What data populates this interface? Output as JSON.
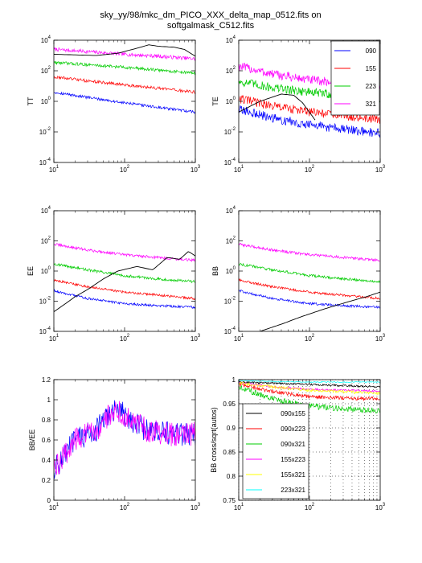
{
  "figure": {
    "title_line1": "sky_yy/98/mkc_dm_PICO_XXX_delta_map_0512.fits on",
    "title_line2": "softgalmask_C512.fits"
  },
  "colors": {
    "090": "#0000ff",
    "155": "#ff0000",
    "223": "#00cc00",
    "321": "#ff00ff",
    "theory": "#000000",
    "090x155": "#000000",
    "090x223": "#ff0000",
    "090x321": "#00cc00",
    "155x223": "#ff00ff",
    "155x321": "#ffff00",
    "223x321": "#00ffff"
  },
  "chart_data": [
    {
      "id": "TT",
      "type": "line",
      "ylabel": "TT",
      "xscale": "log",
      "yscale": "log",
      "xlim": [
        10,
        1000
      ],
      "ylim": [
        0.0001,
        10000
      ],
      "xticks": [
        {
          "base": "10",
          "exp": "1"
        },
        {
          "base": "10",
          "exp": "2"
        },
        {
          "base": "10",
          "exp": "3"
        }
      ],
      "yticks": [
        {
          "base": "10",
          "exp": "-4"
        },
        {
          "base": "10",
          "exp": "-2"
        },
        {
          "base": "10",
          "exp": "0"
        },
        {
          "base": "10",
          "exp": "2"
        },
        {
          "base": "10",
          "exp": "4"
        }
      ],
      "series": [
        {
          "key": "321",
          "x": [
            10,
            30,
            100,
            300,
            1000
          ],
          "y": [
            2500,
            1800,
            1200,
            900,
            600
          ],
          "noise": 0.12
        },
        {
          "key": "223",
          "x": [
            10,
            30,
            100,
            300,
            1000
          ],
          "y": [
            350,
            250,
            170,
            110,
            70
          ],
          "noise": 0.1
        },
        {
          "key": "155",
          "x": [
            10,
            30,
            100,
            300,
            1000
          ],
          "y": [
            40,
            22,
            12,
            7,
            4
          ],
          "noise": 0.1
        },
        {
          "key": "090",
          "x": [
            10,
            30,
            100,
            300,
            1000
          ],
          "y": [
            4,
            1.8,
            0.8,
            0.4,
            0.2
          ],
          "noise": 0.09
        },
        {
          "key": "theory",
          "x": [
            10,
            20,
            40,
            80,
            150,
            220,
            300,
            500,
            700,
            1000
          ],
          "y": [
            1200,
            1100,
            1000,
            1400,
            3000,
            5000,
            4000,
            3500,
            2500,
            900
          ],
          "noise": 0
        }
      ]
    },
    {
      "id": "TE",
      "type": "line",
      "ylabel": "TE",
      "xscale": "log",
      "yscale": "log",
      "xlim": [
        10,
        1000
      ],
      "ylim": [
        0.0001,
        10000
      ],
      "xticks": [
        {
          "base": "10",
          "exp": "1"
        },
        {
          "base": "10",
          "exp": "2"
        },
        {
          "base": "10",
          "exp": "3"
        }
      ],
      "yticks": [
        {
          "base": "10",
          "exp": "-4"
        },
        {
          "base": "10",
          "exp": "-2"
        },
        {
          "base": "10",
          "exp": "0"
        },
        {
          "base": "10",
          "exp": "2"
        },
        {
          "base": "10",
          "exp": "4"
        }
      ],
      "legend": {
        "position": "top-right",
        "entries": [
          "090",
          "155",
          "223",
          "321"
        ]
      },
      "series": [
        {
          "key": "321",
          "x": [
            10,
            30,
            100,
            300,
            1000
          ],
          "y": [
            200,
            60,
            25,
            15,
            10
          ],
          "noise": 0.3
        },
        {
          "key": "223",
          "x": [
            10,
            30,
            100,
            300,
            1000
          ],
          "y": [
            20,
            8,
            4,
            2.5,
            1.5
          ],
          "noise": 0.3
        },
        {
          "key": "155",
          "x": [
            10,
            30,
            100,
            300,
            1000
          ],
          "y": [
            1.5,
            0.5,
            0.2,
            0.12,
            0.06
          ],
          "noise": 0.3
        },
        {
          "key": "090",
          "x": [
            10,
            30,
            100,
            300,
            1000
          ],
          "y": [
            0.3,
            0.08,
            0.03,
            0.015,
            0.008
          ],
          "noise": 0.3
        },
        {
          "key": "theory",
          "x": [
            10,
            20,
            40,
            60,
            80,
            120
          ],
          "y": [
            0.2,
            1,
            3,
            2.5,
            0.8,
            0.06
          ],
          "noise": 0
        }
      ]
    },
    {
      "id": "EE",
      "type": "line",
      "ylabel": "EE",
      "xscale": "log",
      "yscale": "log",
      "xlim": [
        10,
        1000
      ],
      "ylim": [
        0.0001,
        10000
      ],
      "xticks": [
        {
          "base": "10",
          "exp": "1"
        },
        {
          "base": "10",
          "exp": "2"
        },
        {
          "base": "10",
          "exp": "3"
        }
      ],
      "yticks": [
        {
          "base": "10",
          "exp": "-4"
        },
        {
          "base": "10",
          "exp": "-2"
        },
        {
          "base": "10",
          "exp": "0"
        },
        {
          "base": "10",
          "exp": "2"
        },
        {
          "base": "10",
          "exp": "4"
        }
      ],
      "series": [
        {
          "key": "321",
          "x": [
            10,
            30,
            100,
            300,
            1000
          ],
          "y": [
            60,
            25,
            12,
            8,
            5
          ],
          "noise": 0.09
        },
        {
          "key": "223",
          "x": [
            10,
            30,
            100,
            300,
            1000
          ],
          "y": [
            3,
            1.2,
            0.5,
            0.3,
            0.2
          ],
          "noise": 0.09
        },
        {
          "key": "155",
          "x": [
            10,
            30,
            100,
            300,
            1000
          ],
          "y": [
            0.25,
            0.09,
            0.04,
            0.025,
            0.015
          ],
          "noise": 0.08
        },
        {
          "key": "090",
          "x": [
            10,
            30,
            100,
            300,
            1000
          ],
          "y": [
            0.05,
            0.015,
            0.007,
            0.005,
            0.004
          ],
          "noise": 0.08
        },
        {
          "key": "theory",
          "x": [
            10,
            14,
            20,
            30,
            50,
            80,
            150,
            250,
            400,
            600,
            800,
            1000
          ],
          "y": [
            0.002,
            0.006,
            0.02,
            0.06,
            0.3,
            1,
            2,
            1.2,
            8,
            6,
            20,
            10
          ],
          "noise": 0
        }
      ]
    },
    {
      "id": "BB",
      "type": "line",
      "ylabel": "BB",
      "xscale": "log",
      "yscale": "log",
      "xlim": [
        10,
        1000
      ],
      "ylim": [
        0.0001,
        10000
      ],
      "xticks": [
        {
          "base": "10",
          "exp": "1"
        },
        {
          "base": "10",
          "exp": "2"
        },
        {
          "base": "10",
          "exp": "3"
        }
      ],
      "yticks": [
        {
          "base": "10",
          "exp": "-4"
        },
        {
          "base": "10",
          "exp": "-2"
        },
        {
          "base": "10",
          "exp": "0"
        },
        {
          "base": "10",
          "exp": "2"
        },
        {
          "base": "10",
          "exp": "4"
        }
      ],
      "series": [
        {
          "key": "321",
          "x": [
            10,
            30,
            100,
            300,
            1000
          ],
          "y": [
            60,
            25,
            12,
            8,
            5
          ],
          "noise": 0.09
        },
        {
          "key": "223",
          "x": [
            10,
            30,
            100,
            300,
            1000
          ],
          "y": [
            3,
            1.2,
            0.5,
            0.3,
            0.2
          ],
          "noise": 0.09
        },
        {
          "key": "155",
          "x": [
            10,
            30,
            100,
            300,
            1000
          ],
          "y": [
            0.25,
            0.09,
            0.04,
            0.025,
            0.015
          ],
          "noise": 0.08
        },
        {
          "key": "090",
          "x": [
            10,
            30,
            100,
            300,
            1000
          ],
          "y": [
            0.05,
            0.015,
            0.007,
            0.005,
            0.004
          ],
          "noise": 0.08
        },
        {
          "key": "theory",
          "x": [
            20,
            40,
            80,
            160,
            320,
            640,
            1000
          ],
          "y": [
            0.0001,
            0.0003,
            0.001,
            0.003,
            0.008,
            0.02,
            0.04
          ],
          "noise": 0
        }
      ]
    },
    {
      "id": "ratio",
      "type": "line",
      "ylabel": "BB/EE",
      "xscale": "log",
      "yscale": "linear",
      "xlim": [
        10,
        1000
      ],
      "ylim": [
        0,
        1.2
      ],
      "xticks": [
        {
          "base": "10",
          "exp": "1"
        },
        {
          "base": "10",
          "exp": "2"
        },
        {
          "base": "10",
          "exp": "3"
        }
      ],
      "yticks": [
        {
          "text": "0"
        },
        {
          "text": "0.2"
        },
        {
          "text": "0.4"
        },
        {
          "text": "0.6"
        },
        {
          "text": "0.8"
        },
        {
          "text": "1"
        },
        {
          "text": "1.2"
        }
      ],
      "series": [
        {
          "key": "090",
          "x": [
            10,
            20,
            40,
            70,
            100,
            200,
            500,
            1000
          ],
          "y": [
            0.3,
            0.6,
            0.7,
            0.9,
            0.85,
            0.7,
            0.65,
            0.66
          ],
          "noise": 0.12
        },
        {
          "key": "321",
          "x": [
            10,
            20,
            40,
            70,
            100,
            200,
            500,
            1000
          ],
          "y": [
            0.3,
            0.6,
            0.7,
            0.9,
            0.85,
            0.7,
            0.65,
            0.66
          ],
          "noise": 0.12
        }
      ]
    },
    {
      "id": "cross",
      "type": "line",
      "ylabel": "BB cross/sqrt(autos)",
      "xscale": "log",
      "yscale": "linear",
      "xlim": [
        10,
        1000
      ],
      "ylim": [
        0.75,
        1.0
      ],
      "xticks": [
        {
          "base": "10",
          "exp": "1"
        },
        {
          "base": "10",
          "exp": "2"
        },
        {
          "base": "10",
          "exp": "3"
        }
      ],
      "yticks": [
        {
          "text": "0.75"
        },
        {
          "text": "0.8"
        },
        {
          "text": "0.85"
        },
        {
          "text": "0.9"
        },
        {
          "text": "0.95"
        },
        {
          "text": "1"
        }
      ],
      "legend": {
        "position": "bottom-left",
        "entries": [
          "090x155",
          "090x223",
          "090x321",
          "155x223",
          "155x321",
          "223x321"
        ]
      },
      "series": [
        {
          "key": "090x155",
          "x": [
            10,
            100,
            1000
          ],
          "y": [
            0.995,
            0.99,
            0.985
          ],
          "noise": 0.002
        },
        {
          "key": "090x223",
          "x": [
            10,
            30,
            100,
            300,
            1000
          ],
          "y": [
            0.99,
            0.975,
            0.965,
            0.962,
            0.96
          ],
          "noise": 0.004
        },
        {
          "key": "090x321",
          "x": [
            10,
            30,
            100,
            300,
            1000
          ],
          "y": [
            0.985,
            0.96,
            0.945,
            0.94,
            0.935
          ],
          "noise": 0.006
        },
        {
          "key": "155x223",
          "x": [
            10,
            30,
            100,
            300,
            1000
          ],
          "y": [
            0.995,
            0.985,
            0.98,
            0.978,
            0.976
          ],
          "noise": 0.002
        },
        {
          "key": "155x321",
          "x": [
            10,
            30,
            100,
            300,
            1000
          ],
          "y": [
            0.993,
            0.985,
            0.978,
            0.975,
            0.972
          ],
          "noise": 0.003
        },
        {
          "key": "223x321",
          "x": [
            10,
            30,
            100,
            300,
            1000
          ],
          "y": [
            0.998,
            0.996,
            0.995,
            0.995,
            0.995
          ],
          "noise": 0.001
        }
      ]
    }
  ]
}
